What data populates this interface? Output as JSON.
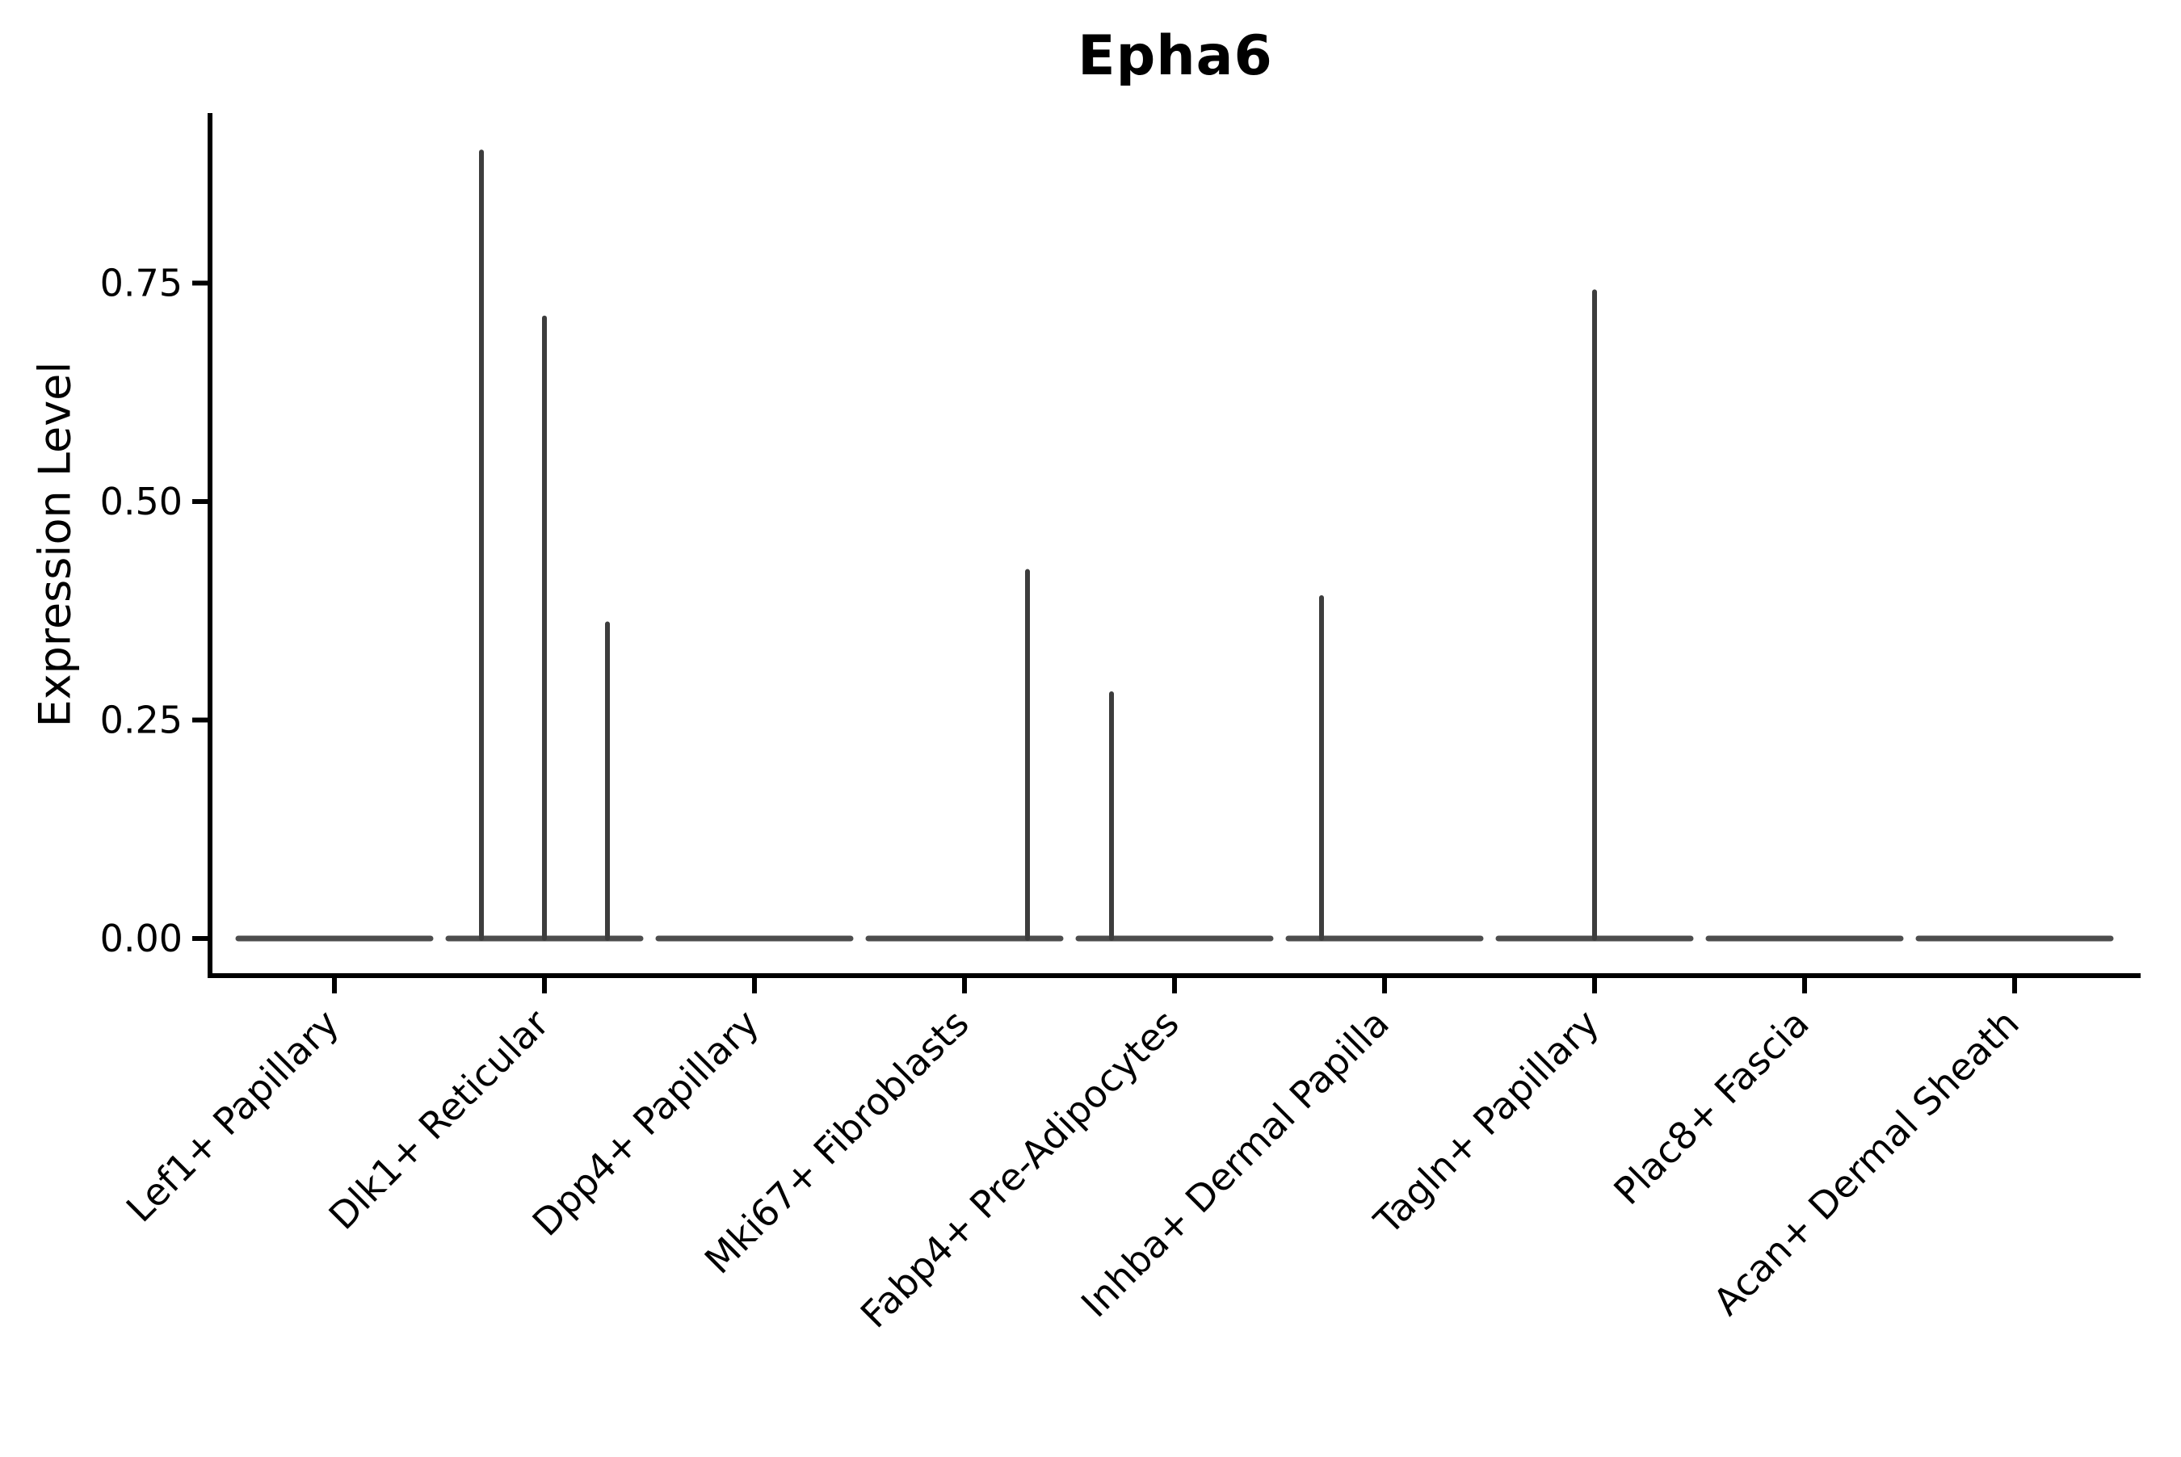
{
  "chart_data": {
    "type": "violin",
    "title": "Epha6",
    "xlabel": "",
    "ylabel": "Expression Level",
    "ytick_labels": [
      "0.00",
      "0.25",
      "0.50",
      "0.75"
    ],
    "ytick_values": [
      0.0,
      0.25,
      0.5,
      0.75
    ],
    "ylim": [
      -0.043,
      0.944
    ],
    "grid": false,
    "legend": "none",
    "categories": [
      "Lef1+ Papillary",
      "Dlk1+ Reticular",
      "Dpp4+ Papillary",
      "Mki67+ Fibroblasts",
      "Fabp4+ Pre-Adipocytes",
      "Inhba+ Dermal Papilla",
      "Tagln+ Papillary",
      "Plac8+ Fascia",
      "Acan+ Dermal Sheath"
    ],
    "violins": [
      {
        "category": "Lef1+ Papillary",
        "baseline_value": 0.0,
        "spikes": []
      },
      {
        "category": "Dlk1+ Reticular",
        "baseline_value": 0.0,
        "spikes": [
          {
            "offset": -0.3,
            "value": 0.9
          },
          {
            "offset": 0.0,
            "value": 0.71
          },
          {
            "offset": 0.3,
            "value": 0.36
          }
        ]
      },
      {
        "category": "Dpp4+ Papillary",
        "baseline_value": 0.0,
        "spikes": []
      },
      {
        "category": "Mki67+ Fibroblasts",
        "baseline_value": 0.0,
        "spikes": [
          {
            "offset": 0.3,
            "value": 0.42
          }
        ]
      },
      {
        "category": "Fabp4+ Pre-Adipocytes",
        "baseline_value": 0.0,
        "spikes": [
          {
            "offset": -0.3,
            "value": 0.28
          }
        ]
      },
      {
        "category": "Inhba+ Dermal Papilla",
        "baseline_value": 0.0,
        "spikes": [
          {
            "offset": -0.3,
            "value": 0.39
          }
        ]
      },
      {
        "category": "Tagln+ Papillary",
        "baseline_value": 0.0,
        "spikes": [
          {
            "offset": 0.0,
            "value": 0.74
          }
        ]
      },
      {
        "category": "Plac8+ Fascia",
        "baseline_value": 0.0,
        "spikes": []
      },
      {
        "category": "Acan+ Dermal Sheath",
        "baseline_value": 0.0,
        "spikes": []
      }
    ],
    "colors": {
      "violin_stroke": "#3d3d3d",
      "baseline_stroke": "#4d4d4d",
      "axis": "#000000",
      "text": "#000000",
      "background": "#ffffff"
    }
  }
}
